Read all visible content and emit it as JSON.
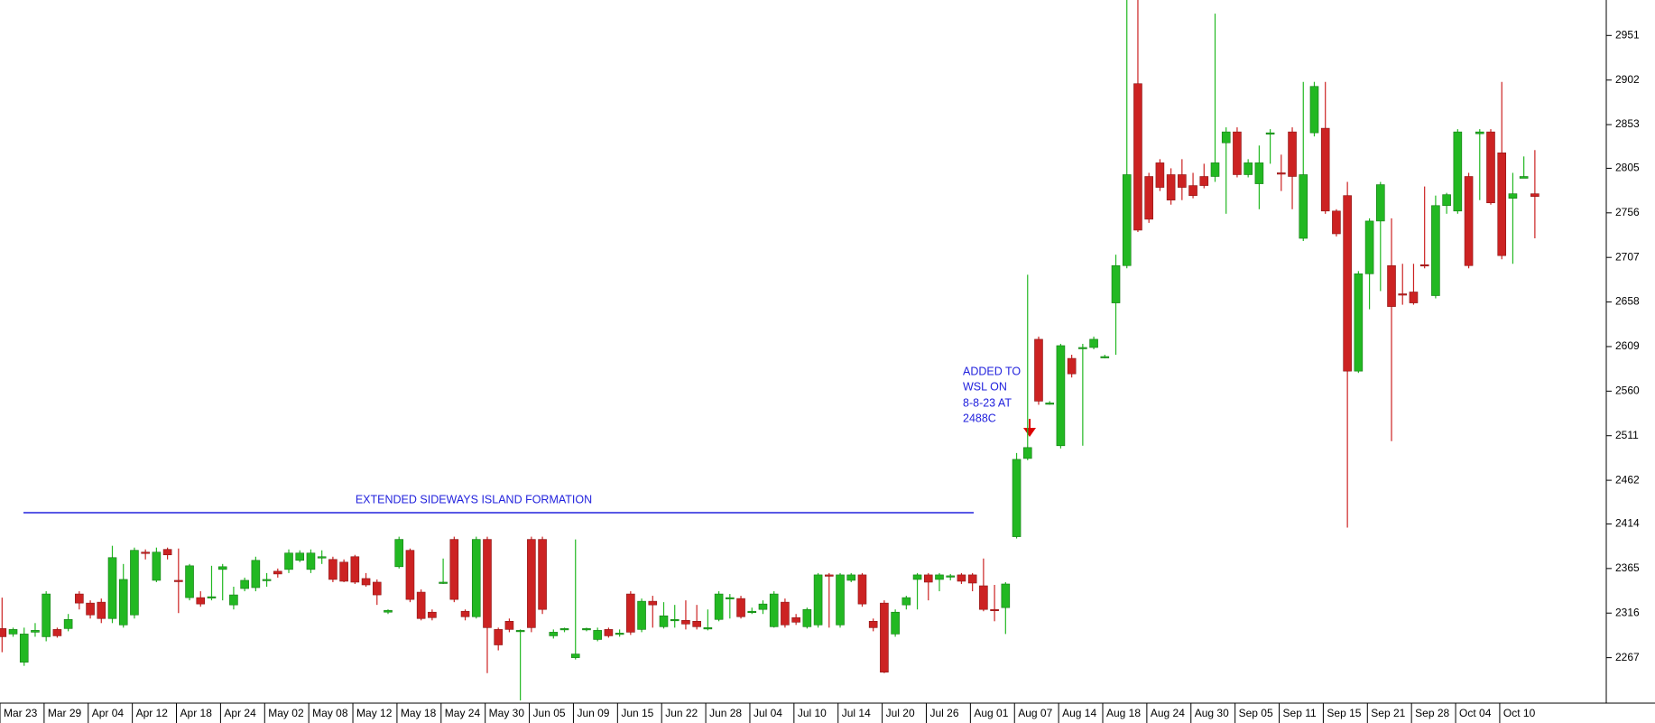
{
  "chart_data": {
    "type": "candlestick",
    "up_color": "#22b822",
    "down_color": "#cc2222",
    "ylim": [
      2217,
      2990
    ],
    "yticks": [
      2267,
      2316,
      2365,
      2414,
      2462,
      2511,
      2560,
      2609,
      2658,
      2707,
      2756,
      2805,
      2853,
      2902,
      2951
    ],
    "annotations": [
      {
        "text": "EXTENDED SIDEWAYS ISLAND FORMATION"
      },
      {
        "lines": [
          "ADDED TO",
          "WSL ON",
          "8-8-23 AT",
          "2488C"
        ]
      }
    ],
    "categories": [
      "Mar 23",
      null,
      null,
      null,
      "Mar 29",
      null,
      null,
      null,
      "Apr 04",
      null,
      null,
      null,
      "Apr 12",
      null,
      null,
      null,
      "Apr 18",
      null,
      null,
      null,
      "Apr 24",
      null,
      null,
      null,
      "May 02",
      null,
      null,
      null,
      "May 08",
      null,
      null,
      null,
      "May 12",
      null,
      null,
      null,
      "May 18",
      null,
      null,
      null,
      "May 24",
      null,
      null,
      null,
      "May 30",
      null,
      null,
      null,
      "Jun 05",
      null,
      null,
      null,
      "Jun 09",
      null,
      null,
      null,
      "Jun 15",
      null,
      null,
      null,
      "Jun 22",
      null,
      null,
      null,
      "Jun 28",
      null,
      null,
      null,
      "Jul 04",
      null,
      null,
      null,
      "Jul 10",
      null,
      null,
      null,
      "Jul 14",
      null,
      null,
      null,
      "Jul 20",
      null,
      null,
      null,
      "Jul 26",
      null,
      null,
      null,
      "Aug 01",
      null,
      null,
      null,
      "Aug 07",
      null,
      null,
      null,
      "Aug 14",
      null,
      null,
      null,
      "Aug 18",
      null,
      null,
      null,
      "Aug 24",
      null,
      null,
      null,
      "Aug 30",
      null,
      null,
      null,
      "Sep 05",
      null,
      null,
      null,
      "Sep 11",
      null,
      null,
      null,
      "Sep 15",
      null,
      null,
      null,
      "Sep 21",
      null,
      null,
      null,
      "Sep 28",
      null,
      null,
      null,
      "Oct 04",
      null,
      null,
      null,
      "Oct 10",
      null,
      null,
      null
    ],
    "open": [
      2299,
      2293,
      2262,
      2295,
      2290,
      2298,
      2299,
      2337,
      2327,
      2328,
      2310,
      2303,
      2314,
      2383,
      2352,
      2386,
      2352,
      2333,
      2333,
      2333,
      2364,
      2325,
      2343,
      2344,
      2353,
      2362,
      2364,
      2374,
      2364,
      2378,
      2375,
      2372,
      2378,
      2354,
      2350,
      2317,
      2367,
      2385,
      2339,
      2317,
      2350,
      2397,
      2318,
      2312,
      2397,
      2298,
      2307,
      2296,
      2397,
      2397,
      2291,
      2298,
      2267,
      2298,
      2287,
      2298,
      2294,
      2337,
      2298,
      2329,
      2301,
      2309,
      2308,
      2307,
      2300,
      2309,
      2332,
      2332,
      2318,
      2320,
      2301,
      2328,
      2311,
      2301,
      2303,
      2358,
      2303,
      2352,
      2358,
      2307,
      2327,
      2293,
      2325,
      2353,
      2358,
      2353,
      2357,
      2358,
      2358,
      2346,
      2320,
      2322,
      2400,
      2486,
      2617,
      2547,
      2500,
      2596,
      2608,
      2608,
      2598,
      2657,
      2698,
      2898,
      2796,
      2811,
      2798,
      2798,
      2786,
      2796,
      2796,
      2833,
      2845,
      2798,
      2788,
      2844,
      2800,
      2845,
      2728,
      2844,
      2849,
      2758,
      2775,
      2582,
      2689,
      2747,
      2698,
      2667,
      2669,
      2699,
      2665,
      2764,
      2758,
      2796,
      2843,
      2845,
      2822,
      2772,
      2794,
      2777
    ],
    "high": [
      2333,
      2300,
      2300,
      2305,
      2340,
      2300,
      2315,
      2340,
      2330,
      2332,
      2390,
      2370,
      2388,
      2386,
      2388,
      2388,
      2387,
      2370,
      2340,
      2368,
      2370,
      2345,
      2355,
      2378,
      2360,
      2365,
      2386,
      2385,
      2386,
      2385,
      2378,
      2375,
      2380,
      2360,
      2353,
      2320,
      2400,
      2387,
      2342,
      2320,
      2376,
      2400,
      2320,
      2400,
      2400,
      2300,
      2310,
      2298,
      2400,
      2400,
      2298,
      2300,
      2397,
      2300,
      2300,
      2300,
      2298,
      2340,
      2332,
      2335,
      2328,
      2325,
      2330,
      2325,
      2320,
      2340,
      2337,
      2335,
      2322,
      2330,
      2340,
      2332,
      2315,
      2322,
      2360,
      2360,
      2360,
      2360,
      2360,
      2310,
      2330,
      2320,
      2335,
      2360,
      2360,
      2360,
      2359,
      2360,
      2360,
      2376,
      2347,
      2350,
      2492,
      2688,
      2620,
      2549,
      2612,
      2600,
      2612,
      2620,
      2600,
      2710,
      2990,
      2990,
      2800,
      2815,
      2805,
      2815,
      2800,
      2810,
      2975,
      2850,
      2850,
      2815,
      2830,
      2848,
      2820,
      2850,
      2900,
      2900,
      2900,
      2760,
      2790,
      2692,
      2750,
      2790,
      2750,
      2700,
      2700,
      2785,
      2775,
      2778,
      2848,
      2800,
      2848,
      2848,
      2900,
      2800,
      2818,
      2825
    ],
    "low": [
      2273,
      2290,
      2258,
      2290,
      2285,
      2289,
      2296,
      2320,
      2310,
      2305,
      2305,
      2300,
      2310,
      2375,
      2350,
      2375,
      2316,
      2330,
      2323,
      2330,
      2330,
      2320,
      2340,
      2340,
      2345,
      2355,
      2360,
      2372,
      2360,
      2370,
      2350,
      2350,
      2348,
      2345,
      2325,
      2315,
      2365,
      2328,
      2308,
      2308,
      2348,
      2328,
      2308,
      2310,
      2250,
      2275,
      2295,
      2220,
      2295,
      2315,
      2288,
      2295,
      2265,
      2296,
      2285,
      2289,
      2290,
      2292,
      2295,
      2300,
      2299,
      2300,
      2298,
      2298,
      2297,
      2307,
      2310,
      2310,
      2315,
      2315,
      2300,
      2300,
      2303,
      2299,
      2300,
      2300,
      2300,
      2350,
      2323,
      2296,
      2250,
      2290,
      2320,
      2320,
      2330,
      2340,
      2352,
      2348,
      2340,
      2318,
      2307,
      2293,
      2398,
      2484,
      2545,
      2545,
      2497,
      2575,
      2500,
      2606,
      2596,
      2600,
      2695,
      2735,
      2745,
      2780,
      2765,
      2770,
      2772,
      2783,
      2790,
      2755,
      2795,
      2795,
      2760,
      2810,
      2780,
      2760,
      2725,
      2840,
      2755,
      2730,
      2410,
      2580,
      2650,
      2670,
      2505,
      2655,
      2655,
      2695,
      2662,
      2755,
      2755,
      2695,
      2770,
      2765,
      2705,
      2700,
      2794,
      2728
    ],
    "close": [
      2290,
      2298,
      2293,
      2297,
      2337,
      2291,
      2309,
      2327,
      2314,
      2310,
      2377,
      2353,
      2385,
      2382,
      2383,
      2380,
      2351,
      2368,
      2326,
      2334,
      2367,
      2336,
      2352,
      2374,
      2353,
      2359,
      2382,
      2382,
      2382,
      2378,
      2353,
      2351,
      2350,
      2347,
      2336,
      2319,
      2397,
      2331,
      2310,
      2311,
      2350,
      2331,
      2312,
      2397,
      2300,
      2281,
      2298,
      2297,
      2300,
      2320,
      2295,
      2299,
      2271,
      2299,
      2297,
      2291,
      2294,
      2295,
      2329,
      2325,
      2313,
      2309,
      2304,
      2301,
      2300,
      2337,
      2333,
      2312,
      2318,
      2326,
      2337,
      2303,
      2306,
      2320,
      2358,
      2357,
      2358,
      2358,
      2326,
      2300,
      2251,
      2317,
      2333,
      2358,
      2350,
      2358,
      2357,
      2351,
      2349,
      2320,
      2319,
      2348,
      2485,
      2498,
      2549,
      2547,
      2610,
      2579,
      2608,
      2617,
      2598,
      2698,
      2798,
      2737,
      2749,
      2784,
      2770,
      2784,
      2775,
      2786,
      2811,
      2845,
      2798,
      2811,
      2811,
      2844,
      2799,
      2796,
      2798,
      2895,
      2758,
      2733,
      2582,
      2689,
      2747,
      2787,
      2653,
      2666,
      2657,
      2698,
      2764,
      2776,
      2845,
      2698,
      2845,
      2767,
      2709,
      2777,
      2796,
      2774
    ]
  }
}
